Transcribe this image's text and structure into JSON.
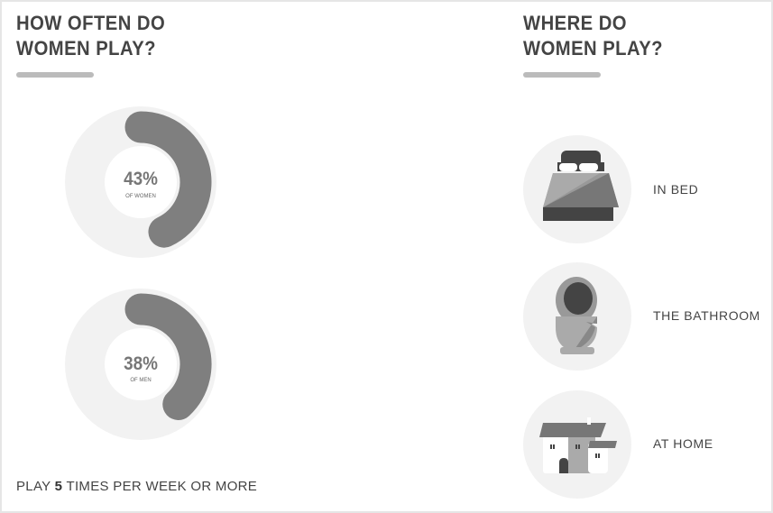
{
  "left": {
    "title_line1": "HOW OFTEN DO",
    "title_line2": "WOMEN PLAY?",
    "footnote_pre": "PLAY ",
    "footnote_num": "5",
    "footnote_post": " TIMES PER WEEK OR MORE"
  },
  "right": {
    "title_line1": "WHERE DO",
    "title_line2": "WOMEN PLAY?",
    "places": [
      {
        "label": "IN BED",
        "icon": "bed-icon"
      },
      {
        "label": "THE BATHROOM",
        "icon": "toilet-icon"
      },
      {
        "label": "AT HOME",
        "icon": "house-icon"
      }
    ]
  },
  "chart_data": [
    {
      "type": "pie",
      "subtype": "donut",
      "value": 43,
      "label": "43%",
      "caption": "OF WOMEN",
      "colors": {
        "fill": "#7f7f7f",
        "track": "#f2f2f2"
      }
    },
    {
      "type": "pie",
      "subtype": "donut",
      "value": 38,
      "label": "38%",
      "caption": "OF MEN",
      "colors": {
        "fill": "#7f7f7f",
        "track": "#f2f2f2"
      }
    }
  ]
}
